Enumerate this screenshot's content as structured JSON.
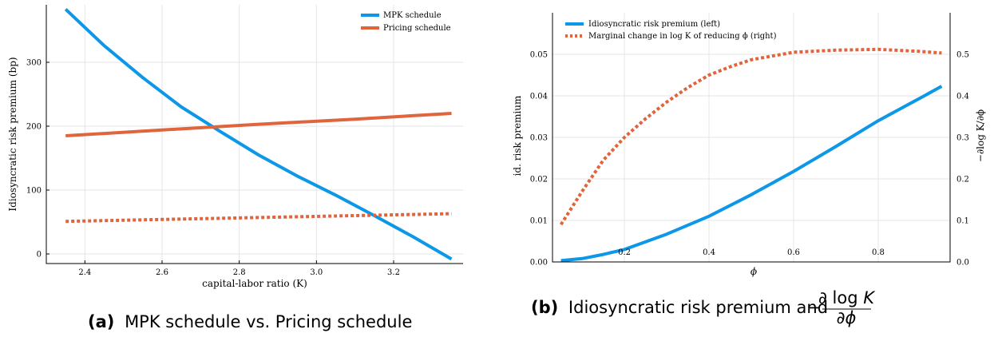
{
  "chart_data": [
    {
      "type": "line",
      "caption_tag": "(a)",
      "caption_text": "MPK schedule vs. Pricing schedule",
      "xlabel": "capital-labor ratio (K)",
      "ylabel": "Idiosyncratic risk premium (bp)",
      "xlim": [
        2.3,
        3.38
      ],
      "ylim": [
        -15,
        390
      ],
      "xticks": [
        "2.4",
        "2.6",
        "2.8",
        "3.0",
        "3.2"
      ],
      "yticks": [
        "0",
        "100",
        "200",
        "300"
      ],
      "grid": true,
      "legend_position": "top-right",
      "series": [
        {
          "name": "MPK schedule",
          "color": "#0c97e8",
          "style": "solid",
          "x": [
            2.35,
            2.45,
            2.55,
            2.65,
            2.75,
            2.85,
            2.95,
            3.05,
            3.15,
            3.25,
            3.35
          ],
          "y": [
            383,
            326,
            276,
            230,
            192,
            155,
            122,
            92,
            60,
            27,
            -8
          ]
        },
        {
          "name": "Pricing schedule",
          "color": "#e0643c",
          "style": "solid",
          "x": [
            2.35,
            2.6,
            2.85,
            3.1,
            3.35
          ],
          "y": [
            185,
            194,
            203,
            211,
            220
          ]
        },
        {
          "name": "",
          "color": "#e0643c",
          "style": "dotted",
          "x": [
            2.35,
            2.6,
            2.85,
            3.1,
            3.35
          ],
          "y": [
            51,
            54,
            57,
            60,
            63
          ]
        }
      ]
    },
    {
      "type": "line",
      "caption_tag": "(b)",
      "caption_text": "Idiosyncratic risk premium and",
      "xlabel": "ϕ",
      "ylabel": "id. risk premium",
      "ylabel_right": "−∂log K/∂ϕ",
      "xlim": [
        0.03,
        0.97
      ],
      "ylim": [
        0,
        0.06
      ],
      "ylim_right": [
        0,
        0.6
      ],
      "xticks": [
        "0.2",
        "0.4",
        "0.6",
        "0.8"
      ],
      "yticks": [
        "0.00",
        "0.01",
        "0.02",
        "0.03",
        "0.04",
        "0.05"
      ],
      "yticks_right": [
        "0.0",
        "0.1",
        "0.2",
        "0.3",
        "0.4",
        "0.5"
      ],
      "grid": true,
      "legend_position": "top-left",
      "series": [
        {
          "name": "Idiosyncratic risk premium (left)",
          "color": "#0c97e8",
          "style": "solid",
          "axis": "left",
          "x": [
            0.05,
            0.1,
            0.15,
            0.2,
            0.3,
            0.4,
            0.5,
            0.6,
            0.7,
            0.8,
            0.9,
            0.95
          ],
          "y": [
            0.0003,
            0.0008,
            0.0018,
            0.003,
            0.0067,
            0.011,
            0.0162,
            0.0218,
            0.0278,
            0.034,
            0.0395,
            0.0423
          ]
        },
        {
          "name": "Marginal change in log K of reducing ϕ (right)",
          "color": "#e0643c",
          "style": "dotted",
          "axis": "right",
          "x": [
            0.05,
            0.1,
            0.15,
            0.2,
            0.25,
            0.3,
            0.35,
            0.4,
            0.45,
            0.5,
            0.6,
            0.7,
            0.8,
            0.9,
            0.95
          ],
          "y": [
            0.09,
            0.17,
            0.245,
            0.3,
            0.345,
            0.385,
            0.42,
            0.45,
            0.47,
            0.487,
            0.505,
            0.51,
            0.512,
            0.507,
            0.503
          ]
        }
      ]
    }
  ]
}
